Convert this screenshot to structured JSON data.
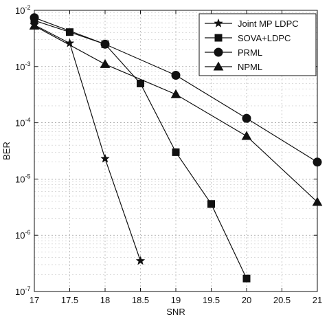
{
  "chart_data": {
    "type": "line",
    "xlabel": "SNR",
    "ylabel": "BER",
    "xlim": [
      17,
      21
    ],
    "ylim": [
      1e-07,
      0.01
    ],
    "yscale": "log",
    "grid": true,
    "legend_position": "top-right",
    "x_ticks": [
      "17",
      "17.5",
      "18",
      "18.5",
      "19",
      "19.5",
      "20",
      "20.5",
      "21"
    ],
    "y_ticks": [
      {
        "base": "10",
        "exp": "-7"
      },
      {
        "base": "10",
        "exp": "-6"
      },
      {
        "base": "10",
        "exp": "-5"
      },
      {
        "base": "10",
        "exp": "-4"
      },
      {
        "base": "10",
        "exp": "-3"
      },
      {
        "base": "10",
        "exp": "-2"
      }
    ],
    "series": [
      {
        "name": "Joint MP LDPC",
        "marker": "star",
        "x": [
          17,
          17.5,
          18,
          18.5
        ],
        "y": [
          0.0055,
          0.0026,
          2.3e-05,
          3.5e-07
        ]
      },
      {
        "name": "SOVA+LDPC",
        "marker": "square",
        "x": [
          17,
          17.5,
          18,
          18.5,
          19,
          19.5,
          20
        ],
        "y": [
          0.0066,
          0.0041,
          0.0025,
          0.0005,
          3e-05,
          3.6e-06,
          1.7e-07
        ]
      },
      {
        "name": "PRML",
        "marker": "circle",
        "x": [
          17,
          18,
          19,
          20,
          21
        ],
        "y": [
          0.0074,
          0.0025,
          0.0007,
          0.00012,
          2e-05
        ]
      },
      {
        "name": "NPML",
        "marker": "triangle",
        "x": [
          17,
          18,
          19,
          20,
          21
        ],
        "y": [
          0.0053,
          0.0011,
          0.00032,
          5.8e-05,
          3.9e-06
        ]
      }
    ]
  }
}
